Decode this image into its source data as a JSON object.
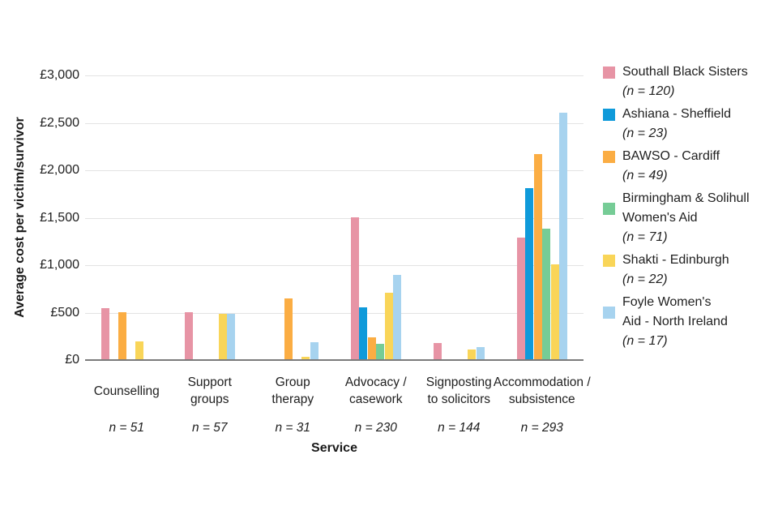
{
  "chart_data": {
    "type": "bar",
    "title": "",
    "xlabel": "Service",
    "ylabel": "Average cost per victim/survivor",
    "ylim": [
      0,
      3000
    ],
    "grid": "horizontal",
    "legend_position": "right",
    "currency_prefix": "£",
    "ytick_values": [
      0,
      500,
      1000,
      1500,
      2000,
      2500,
      3000
    ],
    "ytick_labels": [
      "£0",
      "£500",
      "£1,000",
      "£1,500",
      "£2,000",
      "£2,500",
      "£3,000"
    ],
    "categories": [
      {
        "key": "counselling",
        "label_lines": [
          "Counselling"
        ],
        "label": "Counselling",
        "n_label": "n = 51"
      },
      {
        "key": "support-groups",
        "label_lines": [
          "Support",
          "groups"
        ],
        "label": "Support groups",
        "n_label": "n = 57"
      },
      {
        "key": "group-therapy",
        "label_lines": [
          "Group",
          "therapy"
        ],
        "label": "Group therapy",
        "n_label": "n = 31"
      },
      {
        "key": "advocacy-casework",
        "label_lines": [
          "Advocacy /",
          "casework"
        ],
        "label": "Advocacy / casework",
        "n_label": "n = 230"
      },
      {
        "key": "signposting-to-solicitors",
        "label_lines": [
          "Signposting",
          "to solicitors"
        ],
        "label": "Signposting to solicitors",
        "n_label": "n = 144"
      },
      {
        "key": "accommodation-subsistence",
        "label_lines": [
          "Accommodation /",
          "subsistence"
        ],
        "label": "Accommodation / subsistence",
        "n_label": "n = 293"
      }
    ],
    "series": [
      {
        "key": "southall-black-sisters",
        "name": "Southall Black Sisters",
        "name_lines": [
          "Southall Black Sisters"
        ],
        "n_label": "(n = 120)",
        "color": "#e794a5",
        "values": [
          540,
          500,
          null,
          1500,
          170,
          1280
        ]
      },
      {
        "key": "ashiana-sheffield",
        "name": "Ashiana - Sheffield",
        "name_lines": [
          "Ashiana - Sheffield"
        ],
        "n_label": "(n = 23)",
        "color": "#0f9ada",
        "values": [
          null,
          null,
          null,
          550,
          null,
          1800
        ]
      },
      {
        "key": "bawso-cardiff",
        "name": "BAWSO - Cardiff",
        "name_lines": [
          "BAWSO - Cardiff"
        ],
        "n_label": "(n = 49)",
        "color": "#fbad43",
        "values": [
          500,
          null,
          640,
          230,
          null,
          2160
        ]
      },
      {
        "key": "birmingham-solihull-womens-aid",
        "name": "Birmingham & Solihull Women's Aid",
        "name_lines": [
          "Birmingham & Solihull",
          "Women's Aid"
        ],
        "n_label": "(n = 71)",
        "color": "#76cc96",
        "values": [
          null,
          null,
          null,
          160,
          null,
          1380
        ]
      },
      {
        "key": "shakti-edinburgh",
        "name": "Shakti - Edinburgh",
        "name_lines": [
          "Shakti - Edinburgh"
        ],
        "n_label": "(n = 22)",
        "color": "#f9d558",
        "values": [
          190,
          475,
          30,
          700,
          100,
          1000
        ]
      },
      {
        "key": "foyle-womens-aid-north-ireland",
        "name": "Foyle Women's Aid - North Ireland",
        "name_lines": [
          "Foyle Women's",
          "Aid - North Ireland"
        ],
        "n_label": "(n = 17)",
        "color": "#a7d3ef",
        "values": [
          null,
          480,
          180,
          890,
          130,
          2600
        ]
      }
    ]
  }
}
